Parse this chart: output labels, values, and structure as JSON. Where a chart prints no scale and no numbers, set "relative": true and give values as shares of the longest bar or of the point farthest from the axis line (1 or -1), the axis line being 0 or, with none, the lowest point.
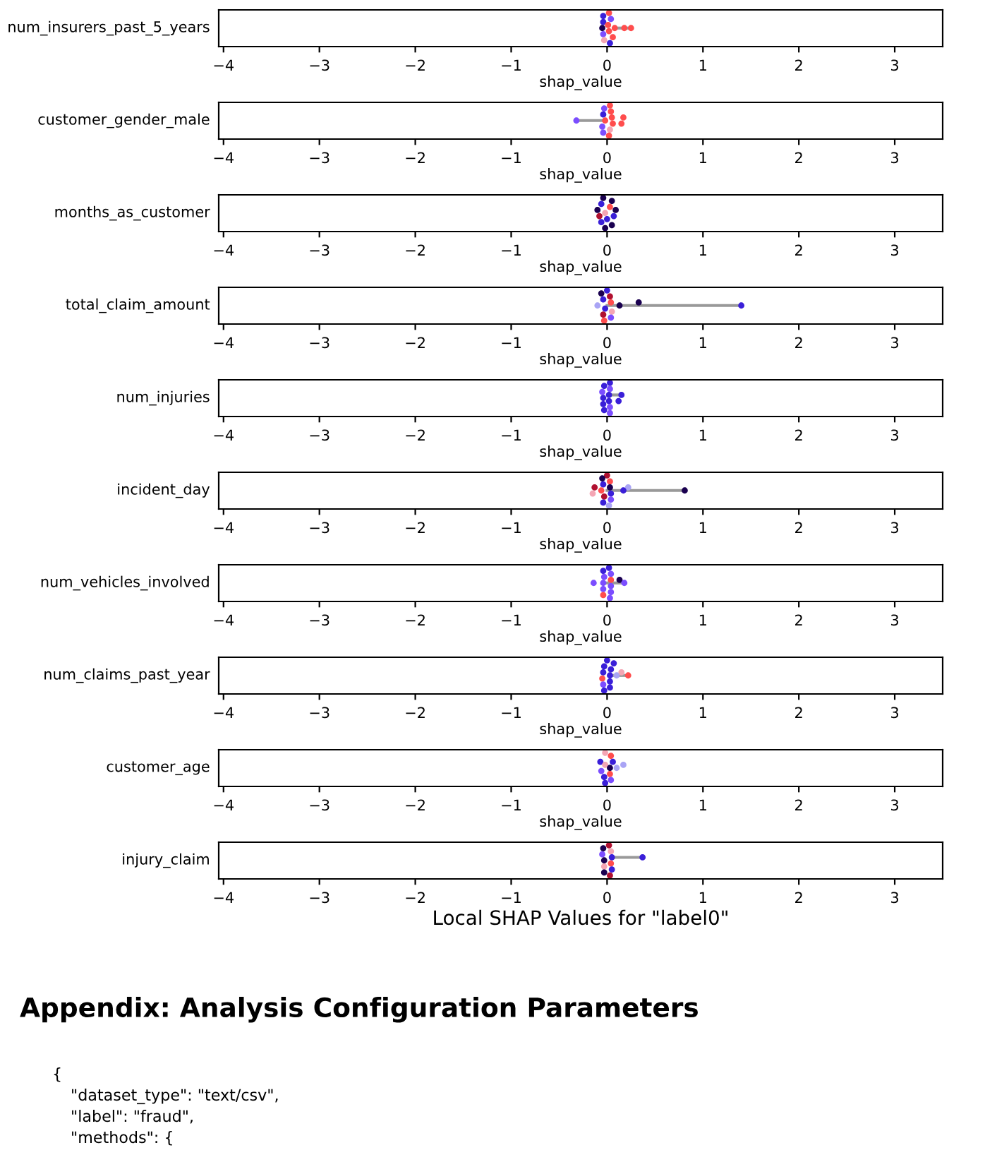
{
  "chart_data": [
    {
      "type": "scatter",
      "ylabel": "num_insurers_past_5_years",
      "xlabel": "shap_value",
      "xlim": [
        -4.05,
        3.5
      ],
      "xticks": [
        -4,
        -3,
        -2,
        -1,
        0,
        1,
        2,
        3
      ],
      "relative": true,
      "tick_labels": "x",
      "series": [
        {
          "type": "line",
          "color": "#999999",
          "x": [
            0.08,
            0.25
          ],
          "values": [
            0.55,
            0.55
          ]
        },
        {
          "x": [
            0.02,
            -0.04,
            0.04,
            -0.04,
            0.01,
            -0.05,
            0.08,
            0.18,
            0.25,
            0.02,
            -0.04,
            0.06,
            -0.03,
            0.03
          ],
          "values": [
            1.0,
            0.91,
            0.82,
            0.73,
            0.64,
            0.55,
            0.55,
            0.55,
            0.55,
            0.46,
            0.37,
            0.28,
            0.19,
            0.1
          ],
          "colors": [
            "#ff4d4d",
            "#3a1fd8",
            "#7b4dff",
            "#3a1fd8",
            "#ff4d4d",
            "#1a0050",
            "#ff4d4d",
            "#ff4d4d",
            "#ff4d4d",
            "#ff4d4d",
            "#7b4dff",
            "#ff4d4d",
            "#f4a6b4",
            "#3a1fd8"
          ]
        }
      ]
    },
    {
      "type": "scatter",
      "ylabel": "customer_gender_male",
      "xlabel": "shap_value",
      "xlim": [
        -4.05,
        3.5
      ],
      "xticks": [
        -4,
        -3,
        -2,
        -1,
        0,
        1,
        2,
        3
      ],
      "relative": true,
      "tick_labels": "x",
      "series": [
        {
          "type": "line",
          "color": "#999999",
          "x": [
            -0.32,
            -0.05
          ],
          "values": [
            0.55,
            0.55
          ]
        },
        {
          "x": [
            -0.32,
            0.03,
            -0.03,
            0.04,
            -0.04,
            0.05,
            0.17,
            -0.02,
            0.06,
            0.15,
            -0.05,
            0.03,
            -0.04,
            0.02
          ],
          "values": [
            0.55,
            1.0,
            0.91,
            0.82,
            0.73,
            0.64,
            0.64,
            0.55,
            0.46,
            0.46,
            0.37,
            0.28,
            0.19,
            0.1
          ],
          "colors": [
            "#7b4dff",
            "#ff4d4d",
            "#7b4dff",
            "#ff4d4d",
            "#3a1fd8",
            "#ff4d4d",
            "#ff4d4d",
            "#ff4d4d",
            "#ff4d4d",
            "#ff4d4d",
            "#7b4dff",
            "#f4a6b4",
            "#7b4dff",
            "#ff4d4d"
          ]
        }
      ]
    },
    {
      "type": "scatter",
      "ylabel": "months_as_customer",
      "xlabel": "shap_value",
      "xlim": [
        -4.05,
        3.5
      ],
      "xticks": [
        -4,
        -3,
        -2,
        -1,
        0,
        1,
        2,
        3
      ],
      "relative": true,
      "tick_labels": "x",
      "series": [
        {
          "x": [
            -0.04,
            0.05,
            -0.06,
            0.03,
            -0.1,
            0.09,
            -0.02,
            -0.08,
            0.07,
            0.0,
            -0.06,
            0.05,
            -0.02
          ],
          "values": [
            1.0,
            0.91,
            0.82,
            0.73,
            0.64,
            0.64,
            0.55,
            0.46,
            0.46,
            0.37,
            0.28,
            0.19,
            0.1
          ],
          "colors": [
            "#1a0050",
            "#1a0050",
            "#3a1fd8",
            "#ff4d4d",
            "#1a0050",
            "#1a0050",
            "#f4a6b4",
            "#b01030",
            "#3a1fd8",
            "#3a1fd8",
            "#3a1fd8",
            "#1a0050",
            "#1a0050"
          ]
        }
      ]
    },
    {
      "type": "scatter",
      "ylabel": "total_claim_amount",
      "xlabel": "shap_value",
      "xlim": [
        -4.05,
        3.5
      ],
      "xticks": [
        -4,
        -3,
        -2,
        -1,
        0,
        1,
        2,
        3
      ],
      "relative": true,
      "tick_labels": "x",
      "series": [
        {
          "type": "line",
          "color": "#999999",
          "x": [
            0.0,
            1.4
          ],
          "values": [
            0.55,
            0.55
          ]
        },
        {
          "x": [
            0.0,
            -0.06,
            0.03,
            -0.04,
            0.04,
            -0.1,
            0.13,
            0.33,
            1.4,
            -0.02,
            0.05,
            -0.04,
            0.04,
            -0.03
          ],
          "values": [
            1.0,
            0.91,
            0.82,
            0.73,
            0.64,
            0.55,
            0.55,
            0.64,
            0.55,
            0.46,
            0.37,
            0.28,
            0.19,
            0.1
          ],
          "colors": [
            "#3a1fd8",
            "#1a0050",
            "#b01030",
            "#3a1fd8",
            "#ff4d4d",
            "#a9a4f5",
            "#1a0050",
            "#1a0050",
            "#3a1fd8",
            "#3a1fd8",
            "#f4a6b4",
            "#b01030",
            "#7b4dff",
            "#ff4d4d"
          ]
        }
      ]
    },
    {
      "type": "scatter",
      "ylabel": "num_injuries",
      "xlabel": "shap_value",
      "xlim": [
        -4.05,
        3.5
      ],
      "xticks": [
        -4,
        -3,
        -2,
        -1,
        0,
        1,
        2,
        3
      ],
      "relative": true,
      "tick_labels": "x",
      "series": [
        {
          "type": "line",
          "color": "#999999",
          "x": [
            0.02,
            0.15
          ],
          "values": [
            0.64,
            0.64
          ]
        },
        {
          "x": [
            0.03,
            -0.03,
            0.03,
            -0.05,
            0.02,
            0.15,
            -0.04,
            0.12,
            0.02,
            -0.04,
            0.03,
            -0.03,
            0.03
          ],
          "values": [
            1.0,
            0.91,
            0.82,
            0.73,
            0.64,
            0.64,
            0.55,
            0.46,
            0.46,
            0.37,
            0.28,
            0.19,
            0.1
          ],
          "colors": [
            "#3a1fd8",
            "#3a1fd8",
            "#7b4dff",
            "#7b4dff",
            "#3a1fd8",
            "#3a1fd8",
            "#3a1fd8",
            "#3a1fd8",
            "#3a1fd8",
            "#3a1fd8",
            "#7b4dff",
            "#3a1fd8",
            "#7b4dff"
          ]
        }
      ]
    },
    {
      "type": "scatter",
      "ylabel": "incident_day",
      "xlabel": "shap_value",
      "xlim": [
        -4.05,
        3.5
      ],
      "xticks": [
        -4,
        -3,
        -2,
        -1,
        0,
        1,
        2,
        3
      ],
      "relative": true,
      "tick_labels": "x",
      "series": [
        {
          "type": "line",
          "color": "#999999",
          "x": [
            0.0,
            0.81
          ],
          "values": [
            0.55,
            0.55
          ]
        },
        {
          "x": [
            0.0,
            -0.05,
            0.03,
            -0.04,
            -0.13,
            0.03,
            0.22,
            -0.06,
            0.17,
            0.81,
            -0.15,
            0.04,
            -0.03,
            0.04,
            -0.04,
            0.02
          ],
          "values": [
            1.0,
            0.91,
            0.82,
            0.73,
            0.64,
            0.64,
            0.64,
            0.55,
            0.55,
            0.55,
            0.46,
            0.46,
            0.37,
            0.28,
            0.19,
            0.1
          ],
          "colors": [
            "#b01030",
            "#1a0050",
            "#ff4d4d",
            "#3a1fd8",
            "#b01030",
            "#1a0050",
            "#a9a4f5",
            "#ff4d4d",
            "#3a1fd8",
            "#1a0050",
            "#f4a6b4",
            "#3a1fd8",
            "#b01030",
            "#7b4dff",
            "#3a1fd8",
            "#a9a4f5"
          ]
        }
      ]
    },
    {
      "type": "scatter",
      "ylabel": "num_vehicles_involved",
      "xlabel": "shap_value",
      "xlim": [
        -4.05,
        3.5
      ],
      "xticks": [
        -4,
        -3,
        -2,
        -1,
        0,
        1,
        2,
        3
      ],
      "relative": true,
      "tick_labels": "x",
      "series": [
        {
          "type": "line",
          "color": "#999999",
          "x": [
            0.0,
            0.18
          ],
          "values": [
            0.55,
            0.55
          ]
        },
        {
          "x": [
            0.02,
            -0.04,
            0.04,
            -0.03,
            0.04,
            0.13,
            -0.14,
            -0.04,
            0.18,
            0.04,
            -0.04,
            0.04,
            -0.04,
            0.03
          ],
          "values": [
            1.0,
            0.91,
            0.82,
            0.73,
            0.64,
            0.64,
            0.55,
            0.55,
            0.55,
            0.46,
            0.37,
            0.28,
            0.19,
            0.1
          ],
          "colors": [
            "#3a1fd8",
            "#3a1fd8",
            "#7b4dff",
            "#7b4dff",
            "#ff4d4d",
            "#1a0050",
            "#7b4dff",
            "#7b4dff",
            "#7b4dff",
            "#7b4dff",
            "#7b4dff",
            "#7b4dff",
            "#ff4d4d",
            "#7b4dff"
          ]
        }
      ]
    },
    {
      "type": "scatter",
      "ylabel": "num_claims_past_year",
      "xlabel": "shap_value",
      "xlim": [
        -4.05,
        3.5
      ],
      "xticks": [
        -4,
        -3,
        -2,
        -1,
        0,
        1,
        2,
        3
      ],
      "relative": true,
      "tick_labels": "x",
      "series": [
        {
          "type": "line",
          "color": "#999999",
          "x": [
            0.03,
            0.22
          ],
          "values": [
            0.55,
            0.55
          ]
        },
        {
          "x": [
            0.0,
            0.07,
            -0.03,
            0.04,
            -0.04,
            0.15,
            0.03,
            0.1,
            0.22,
            -0.05,
            0.03,
            -0.04,
            0.03,
            -0.03
          ],
          "values": [
            1.0,
            0.91,
            0.82,
            0.73,
            0.64,
            0.64,
            0.55,
            0.55,
            0.55,
            0.46,
            0.37,
            0.28,
            0.19,
            0.1
          ],
          "colors": [
            "#3a1fd8",
            "#3a1fd8",
            "#3a1fd8",
            "#3a1fd8",
            "#3a1fd8",
            "#f4a6b4",
            "#3a1fd8",
            "#a9a4f5",
            "#ff4d4d",
            "#ff4d4d",
            "#3a1fd8",
            "#7b4dff",
            "#3a1fd8",
            "#3a1fd8"
          ]
        }
      ]
    },
    {
      "type": "scatter",
      "ylabel": "customer_age",
      "xlabel": "shap_value",
      "xlim": [
        -4.05,
        3.5
      ],
      "xticks": [
        -4,
        -3,
        -2,
        -1,
        0,
        1,
        2,
        3
      ],
      "relative": true,
      "tick_labels": "x",
      "series": [
        {
          "x": [
            -0.02,
            0.04,
            -0.07,
            0.06,
            -0.02,
            0.17,
            0.1,
            0.03,
            -0.06,
            0.03,
            -0.03,
            0.04,
            -0.02
          ],
          "values": [
            1.0,
            0.91,
            0.73,
            0.73,
            0.64,
            0.64,
            0.55,
            0.55,
            0.46,
            0.37,
            0.28,
            0.19,
            0.1
          ],
          "colors": [
            "#f4a6b4",
            "#ff4d4d",
            "#3a1fd8",
            "#3a1fd8",
            "#f4a6b4",
            "#a9a4f5",
            "#a9a4f5",
            "#1a0050",
            "#7b4dff",
            "#ff4d4d",
            "#3a1fd8",
            "#7b4dff",
            "#3a1fd8"
          ]
        }
      ]
    },
    {
      "type": "scatter",
      "ylabel": "injury_claim",
      "xlabel": "Local SHAP Values for \"label0\"",
      "xlim": [
        -4.05,
        3.5
      ],
      "xticks": [
        -4,
        -3,
        -2,
        -1,
        0,
        1,
        2,
        3
      ],
      "relative": true,
      "tick_labels": "x",
      "series": [
        {
          "type": "line",
          "color": "#999999",
          "x": [
            0.05,
            0.37
          ],
          "values": [
            0.64,
            0.64
          ]
        },
        {
          "x": [
            0.02,
            -0.04,
            0.04,
            -0.05,
            0.05,
            0.37,
            -0.03,
            0.04,
            -0.03,
            0.05,
            -0.03,
            0.03
          ],
          "values": [
            1.0,
            0.91,
            0.82,
            0.73,
            0.64,
            0.64,
            0.55,
            0.46,
            0.37,
            0.28,
            0.19,
            0.1
          ],
          "colors": [
            "#b01030",
            "#1a0050",
            "#f4a6b4",
            "#7b4dff",
            "#3a1fd8",
            "#3a1fd8",
            "#1a0050",
            "#ff4d4d",
            "#f4a6b4",
            "#3a1fd8",
            "#1a0050",
            "#b01030"
          ]
        }
      ]
    },
    {
      "type": "other",
      "title": "Appendix: Analysis Configuration Parameters",
      "annotations": [
        "{",
        "\"dataset_type\": \"text/csv\",",
        "\"label\": \"fraud\",",
        "\"methods\": {"
      ]
    }
  ]
}
